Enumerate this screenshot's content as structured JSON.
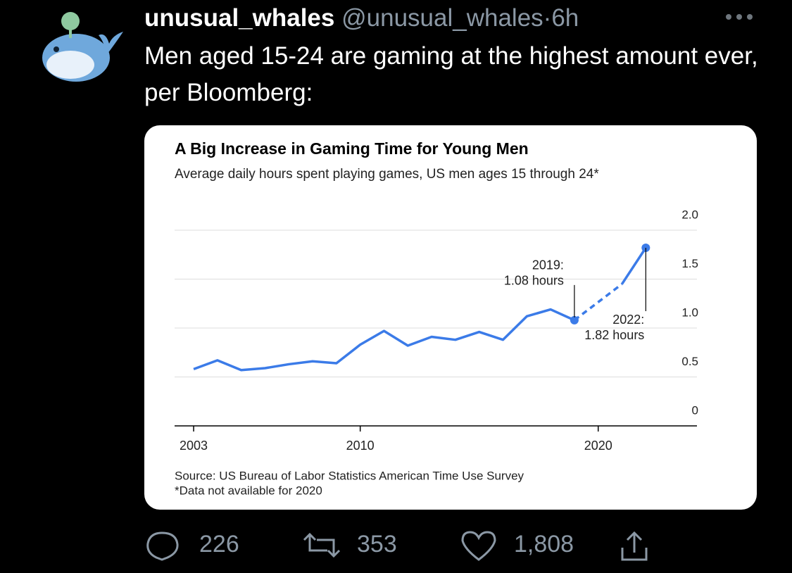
{
  "tweet": {
    "display_name": "unusual_whales",
    "handle": "@unusual_whales",
    "separator": "·",
    "time": "6h",
    "text": "Men aged 15-24 are gaming at the highest amount ever, per Bloomberg:",
    "replies": "226",
    "retweets": "353",
    "likes": "1,808"
  },
  "chart_data": {
    "type": "line",
    "title": "A Big Increase in Gaming Time for Young Men",
    "subtitle": "Average daily hours spent playing games, US men ages 15 through 24*",
    "x": [
      2003,
      2004,
      2005,
      2006,
      2007,
      2008,
      2009,
      2010,
      2011,
      2012,
      2013,
      2014,
      2015,
      2016,
      2017,
      2018,
      2019,
      2020,
      2021,
      2022
    ],
    "series": [
      {
        "color": "#3b7be8",
        "values": [
          0.58,
          0.67,
          0.57,
          0.59,
          0.63,
          0.66,
          0.64,
          0.83,
          0.97,
          0.82,
          0.91,
          0.88,
          0.96,
          0.88,
          1.12,
          1.19,
          1.08,
          null,
          1.45,
          1.82
        ]
      }
    ],
    "gap_style": "dashed",
    "xlim": [
      2002.2,
      2024.15
    ],
    "xticks": [
      2003,
      2010,
      2020
    ],
    "ylim": [
      0,
      2
    ],
    "yticks": [
      0,
      0.5,
      {
        "value": 1,
        "label": "1.0"
      },
      1.5,
      {
        "value": 2,
        "label": "2.0"
      }
    ],
    "grid": true,
    "annotations": [
      {
        "x": 2019,
        "lines": [
          "2019:",
          "1.08 hours"
        ]
      },
      {
        "x": 2022,
        "lines": [
          "2022:",
          "1.82 hours"
        ]
      }
    ],
    "notes": [
      "Source: US Bureau of Labor Statistics American Time Use Survey",
      "*Data not available for 2020"
    ]
  }
}
